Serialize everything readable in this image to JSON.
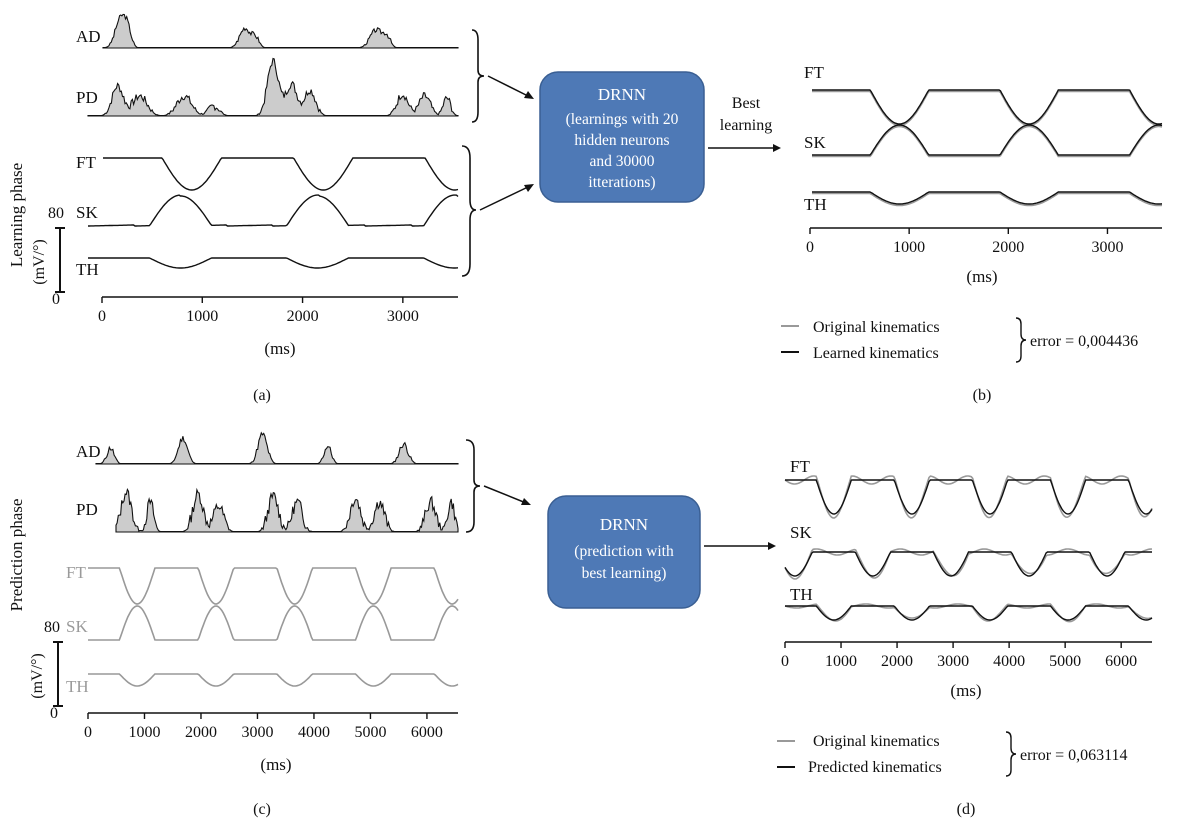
{
  "panels": {
    "a": {
      "label": "(a)",
      "emg_labels": [
        "AD",
        "PD"
      ],
      "joint_labels": [
        "FT",
        "SK",
        "TH"
      ],
      "scale_labels": [
        "80",
        "0"
      ],
      "unit_label": "(mV/°)",
      "x_ticks": [
        "0",
        "1000",
        "2000",
        "3000"
      ],
      "x_unit": "(ms)"
    },
    "b": {
      "label": "(b)",
      "joint_labels": [
        "FT",
        "SK",
        "TH"
      ],
      "x_ticks": [
        "0",
        "1000",
        "2000",
        "3000"
      ],
      "x_unit": "(ms)",
      "legend": [
        "Original kinematics",
        "Learned kinematics"
      ],
      "error": "error = 0,004436"
    },
    "c": {
      "label": "(c)",
      "emg_labels": [
        "AD",
        "PD"
      ],
      "joint_labels": [
        "FT",
        "SK",
        "TH"
      ],
      "scale_labels": [
        "80",
        "0"
      ],
      "unit_label": "(mV/°)",
      "x_ticks": [
        "0",
        "1000",
        "2000",
        "3000",
        "4000",
        "5000",
        "6000"
      ],
      "x_unit": "(ms)"
    },
    "d": {
      "label": "(d)",
      "joint_labels": [
        "FT",
        "SK",
        "TH"
      ],
      "x_ticks": [
        "0",
        "1000",
        "2000",
        "3000",
        "4000",
        "5000",
        "6000"
      ],
      "x_unit": "(ms)",
      "legend": [
        "Original kinematics",
        "Predicted kinematics"
      ],
      "error": "error = 0,063114"
    }
  },
  "phases": {
    "learning": "Learning phase",
    "prediction": "Prediction phase"
  },
  "drnn_learning": {
    "title": "DRNN",
    "lines": [
      "(learnings with 20",
      "hidden neurons",
      "and 30000",
      "itterations)"
    ]
  },
  "drnn_prediction": {
    "title": "DRNN",
    "lines": [
      "(prediction with",
      "best learning)"
    ]
  },
  "best_learning_label": [
    "Best",
    "learning"
  ],
  "colors": {
    "box_fill": "#4e79b6",
    "box_stroke": "#3a5f93",
    "emg_fill": "#cccccc",
    "original_line": "#999999",
    "learned_line": "#111111"
  }
}
